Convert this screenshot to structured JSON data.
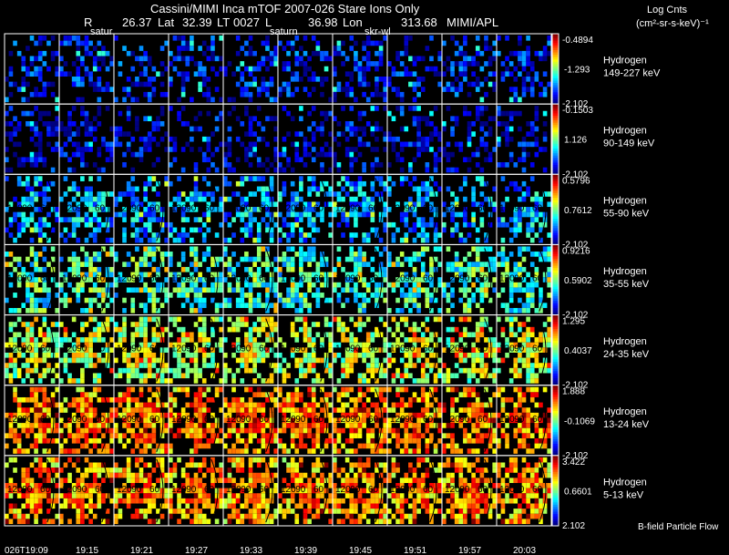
{
  "header": {
    "title": "Cassini/MIMI Inca mTOF  2007-026   Stare    Ions Only",
    "coords": {
      "r_label": "R",
      "r_value": "26.37",
      "lat_label": "Lat",
      "lat_value": "32.39",
      "lt_label": "LT",
      "lt_value": "0027",
      "l_label": "L",
      "l_value": "36.98",
      "lon_label": "Lon",
      "lon_value": "313.68",
      "source": "MIMI/APL"
    },
    "markers": [
      "satur",
      "saturn",
      "skr-wl"
    ],
    "colorbar_title": "Log Cnts",
    "colorbar_units": "(cm²-sr-s-keV)⁻¹"
  },
  "footer": {
    "legend": "B-field  Particle Flow"
  },
  "chart_data": {
    "type": "heatmap",
    "title": "Cassini/MIMI Inca mTOF  2007-026   Stare    Ions Only",
    "x_ticks": [
      "026T19:09",
      "19:15",
      "19:21",
      "19:27",
      "19:33",
      "19:39",
      "19:45",
      "19:51",
      "19:57",
      "20:03"
    ],
    "rows": [
      {
        "species": "Hydrogen",
        "energy": "149-227 keV",
        "cmax": "-0.4894",
        "cmid": "-1.293",
        "cmin": "-2.102",
        "intensity": 0.12,
        "contours": []
      },
      {
        "species": "Hydrogen",
        "energy": "90-149 keV",
        "cmax": "-0.1503",
        "cmid": "1.126",
        "cmin": "-2.102",
        "intensity": 0.08,
        "contours": []
      },
      {
        "species": "Hydrogen",
        "energy": "55-90 keV",
        "cmax": "0.5796",
        "cmid": "0.7612",
        "cmin": "-2.102",
        "intensity": 0.28,
        "contours": [
          "120",
          "90",
          "60"
        ]
      },
      {
        "species": "Hydrogen",
        "energy": "35-55 keV",
        "cmax": "0.9216",
        "cmid": "0.5902",
        "cmin": "-2.102",
        "intensity": 0.4,
        "contours": [
          "120",
          "90",
          "60"
        ]
      },
      {
        "species": "Hydrogen",
        "energy": "24-35 keV",
        "cmax": "1.295",
        "cmid": "0.4037",
        "cmin": "-2.102",
        "intensity": 0.55,
        "contours": [
          "120",
          "90",
          "60"
        ]
      },
      {
        "species": "Hydrogen",
        "energy": "13-24 keV",
        "cmax": "1.888",
        "cmid": "-0.1069",
        "cmin": "-2.102",
        "intensity": 0.72,
        "contours": [
          "120",
          "90",
          "60"
        ]
      },
      {
        "species": "Hydrogen",
        "energy": "5-13 keV",
        "cmax": "3.422",
        "cmid": "0.6601",
        "cmin": "2.102",
        "intensity": 0.7,
        "contours": [
          "120",
          "90",
          "60"
        ]
      }
    ]
  }
}
